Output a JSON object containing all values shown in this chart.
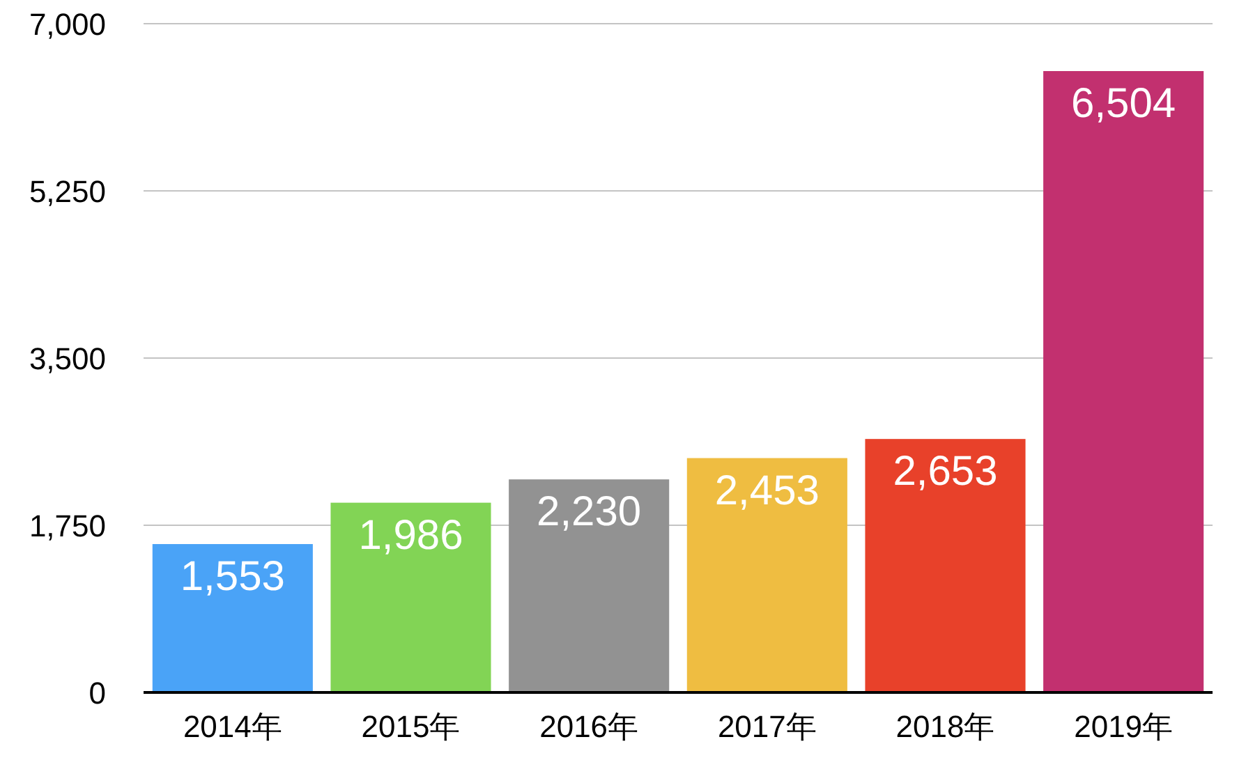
{
  "chart_data": {
    "type": "bar",
    "categories": [
      "2014年",
      "2015年",
      "2016年",
      "2017年",
      "2018年",
      "2019年"
    ],
    "values": [
      1553,
      1986,
      2230,
      2453,
      2653,
      6504
    ],
    "colors": [
      "#4aa3f7",
      "#82d455",
      "#929292",
      "#efbd41",
      "#e8412a",
      "#c2306f"
    ],
    "value_labels": [
      "1,553",
      "1,986",
      "2,230",
      "2,453",
      "2,653",
      "6,504"
    ],
    "ylim": [
      0,
      7000
    ],
    "yticks": [
      0,
      {
        "value": 1750,
        "label": "1,750"
      },
      {
        "value": 3500,
        "label": "3,500"
      },
      {
        "value": 5250,
        "label": "5,250"
      },
      {
        "value": 7000,
        "label": "7,000"
      }
    ],
    "grid": "y"
  }
}
